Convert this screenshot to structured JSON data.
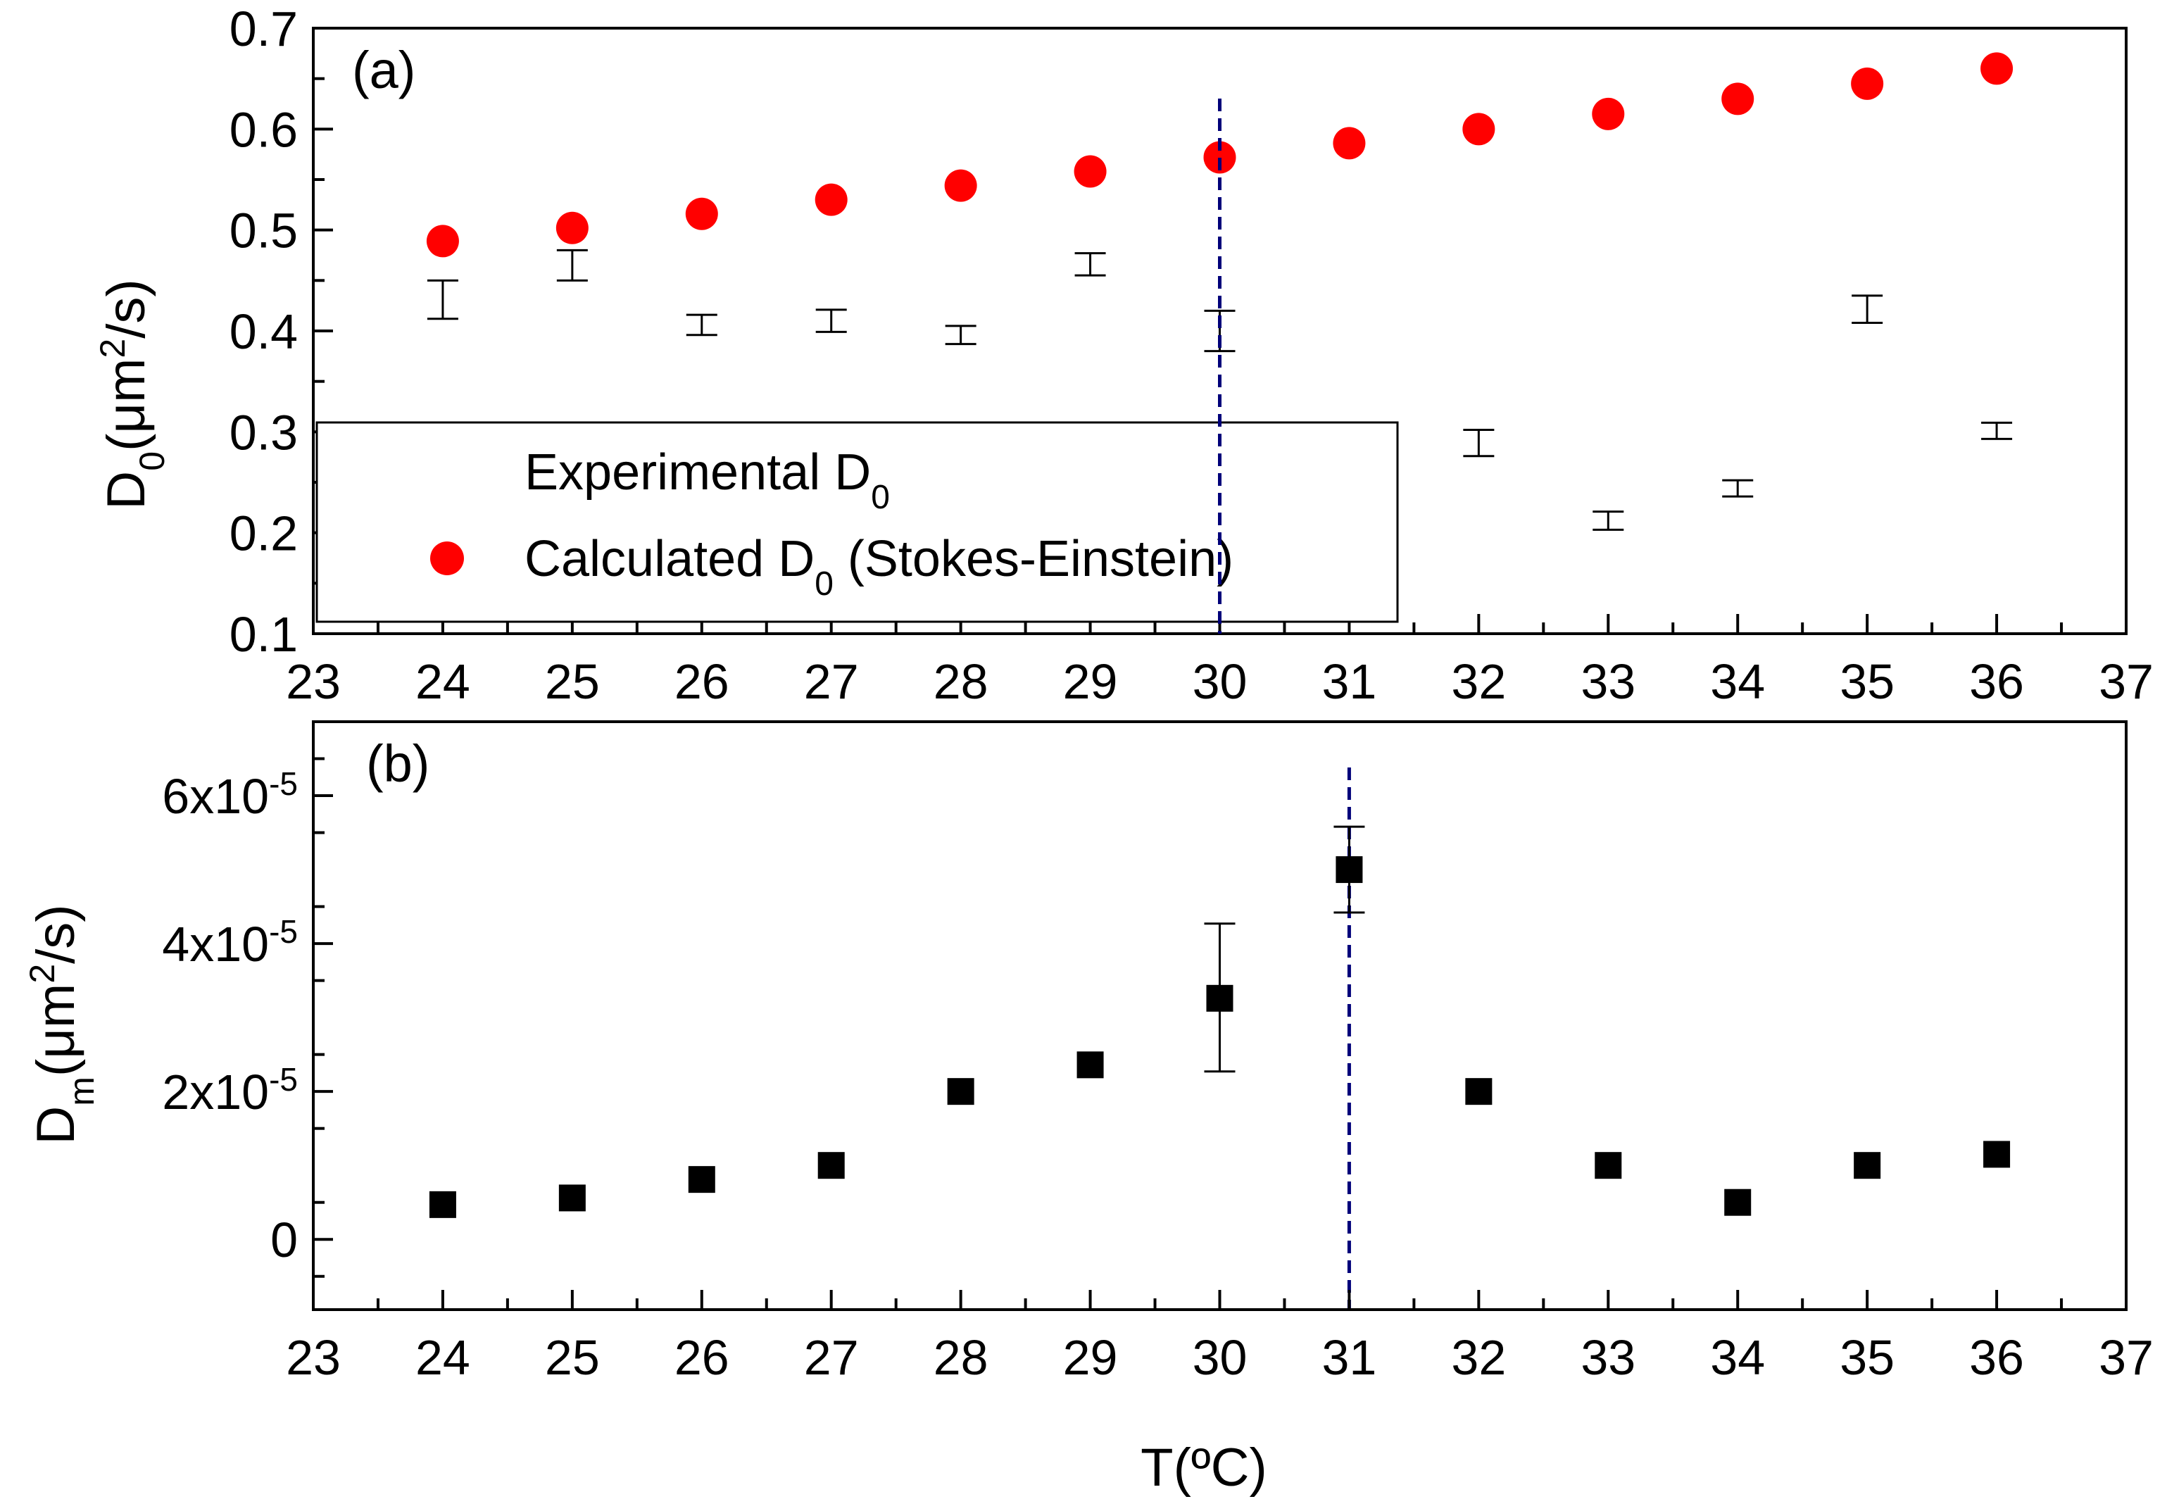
{
  "chart_data": [
    {
      "type": "scatter",
      "panel_label": "(a)",
      "title": "",
      "xlabel": "",
      "ylabel": {
        "base": "D",
        "sub": "0",
        "open": "(",
        "unit": "μm",
        "sup": "2",
        "tail": "/s)"
      },
      "xlim": [
        23,
        37
      ],
      "ylim": [
        0.1,
        0.7
      ],
      "xticks": [
        "23",
        "24",
        "25",
        "26",
        "27",
        "28",
        "29",
        "30",
        "31",
        "32",
        "33",
        "34",
        "35",
        "36",
        "37"
      ],
      "yticks": [
        "0.1",
        "0.2",
        "0.3",
        "0.4",
        "0.5",
        "0.6",
        "0.7"
      ],
      "vline_x": 30,
      "series": [
        {
          "name": "Experimental D0",
          "legend": {
            "text": "Experimental D",
            "sub": "0",
            "tail": ""
          },
          "marker": "errorbar-only",
          "color": "#000000",
          "points": [
            {
              "x": 24,
              "y": 0.43,
              "lo": 0.412,
              "hi": 0.45
            },
            {
              "x": 25,
              "y": 0.465,
              "lo": 0.45,
              "hi": 0.48
            },
            {
              "x": 26,
              "y": 0.405,
              "lo": 0.396,
              "hi": 0.416
            },
            {
              "x": 27,
              "y": 0.41,
              "lo": 0.399,
              "hi": 0.421
            },
            {
              "x": 28,
              "y": 0.396,
              "lo": 0.387,
              "hi": 0.405
            },
            {
              "x": 29,
              "y": 0.466,
              "lo": 0.455,
              "hi": 0.477
            },
            {
              "x": 30,
              "y": 0.38,
              "lo": 0.38,
              "hi": 0.42
            },
            {
              "x": 32,
              "y": 0.29,
              "lo": 0.276,
              "hi": 0.302
            },
            {
              "x": 33,
              "y": 0.212,
              "lo": 0.203,
              "hi": 0.221
            },
            {
              "x": 34,
              "y": 0.242,
              "lo": 0.236,
              "hi": 0.252
            },
            {
              "x": 35,
              "y": 0.422,
              "lo": 0.408,
              "hi": 0.435
            },
            {
              "x": 36,
              "y": 0.3,
              "lo": 0.293,
              "hi": 0.309
            }
          ]
        },
        {
          "name": "Calculated D0 (Stokes-Einstein)",
          "legend": {
            "text": "Calculated D",
            "sub": "0",
            "tail": " (Stokes-Einstein)"
          },
          "marker": "circle",
          "color": "#ff0000",
          "x": [
            24,
            25,
            26,
            27,
            28,
            29,
            30,
            31,
            32,
            33,
            34,
            35,
            36
          ],
          "values": [
            0.489,
            0.502,
            0.516,
            0.53,
            0.544,
            0.558,
            0.572,
            0.586,
            0.6,
            0.615,
            0.63,
            0.645,
            0.66
          ]
        }
      ]
    },
    {
      "type": "scatter",
      "panel_label": "(b)",
      "title": "",
      "xlabel": "T(ºC)",
      "ylabel": {
        "base": "D",
        "sub": "m",
        "open": "(",
        "unit": "μm",
        "sup": "2",
        "tail": "/s)"
      },
      "xlim": [
        23,
        37
      ],
      "ylim": [
        -9.5e-06,
        7e-05
      ],
      "xticks": [
        "23",
        "24",
        "25",
        "26",
        "27",
        "28",
        "29",
        "30",
        "31",
        "32",
        "33",
        "34",
        "35",
        "36",
        "37"
      ],
      "yticks": [
        {
          "value": 0,
          "text": "0",
          "sup": ""
        },
        {
          "value": 2e-05,
          "text": "2x10",
          "sup": "-5"
        },
        {
          "value": 4e-05,
          "text": "4x10",
          "sup": "-5"
        },
        {
          "value": 6e-05,
          "text": "6x10",
          "sup": "-5"
        }
      ],
      "vline_x": 31,
      "series": [
        {
          "name": "Dm",
          "marker": "square",
          "color": "#000000",
          "x": [
            24,
            25,
            26,
            27,
            28,
            29,
            30,
            31,
            32,
            33,
            34,
            35,
            36
          ],
          "values": [
            4.7e-06,
            5.6e-06,
            8.1e-06,
            1e-05,
            2e-05,
            2.36e-05,
            3.26e-05,
            5e-05,
            2e-05,
            1e-05,
            5e-06,
            1e-05,
            1.15e-05
          ],
          "errors": [
            null,
            null,
            null,
            null,
            null,
            null,
            {
              "lo": 2.27e-05,
              "hi": 4.27e-05
            },
            {
              "lo": 4.42e-05,
              "hi": 5.58e-05
            },
            null,
            null,
            null,
            null,
            null
          ]
        }
      ]
    }
  ]
}
